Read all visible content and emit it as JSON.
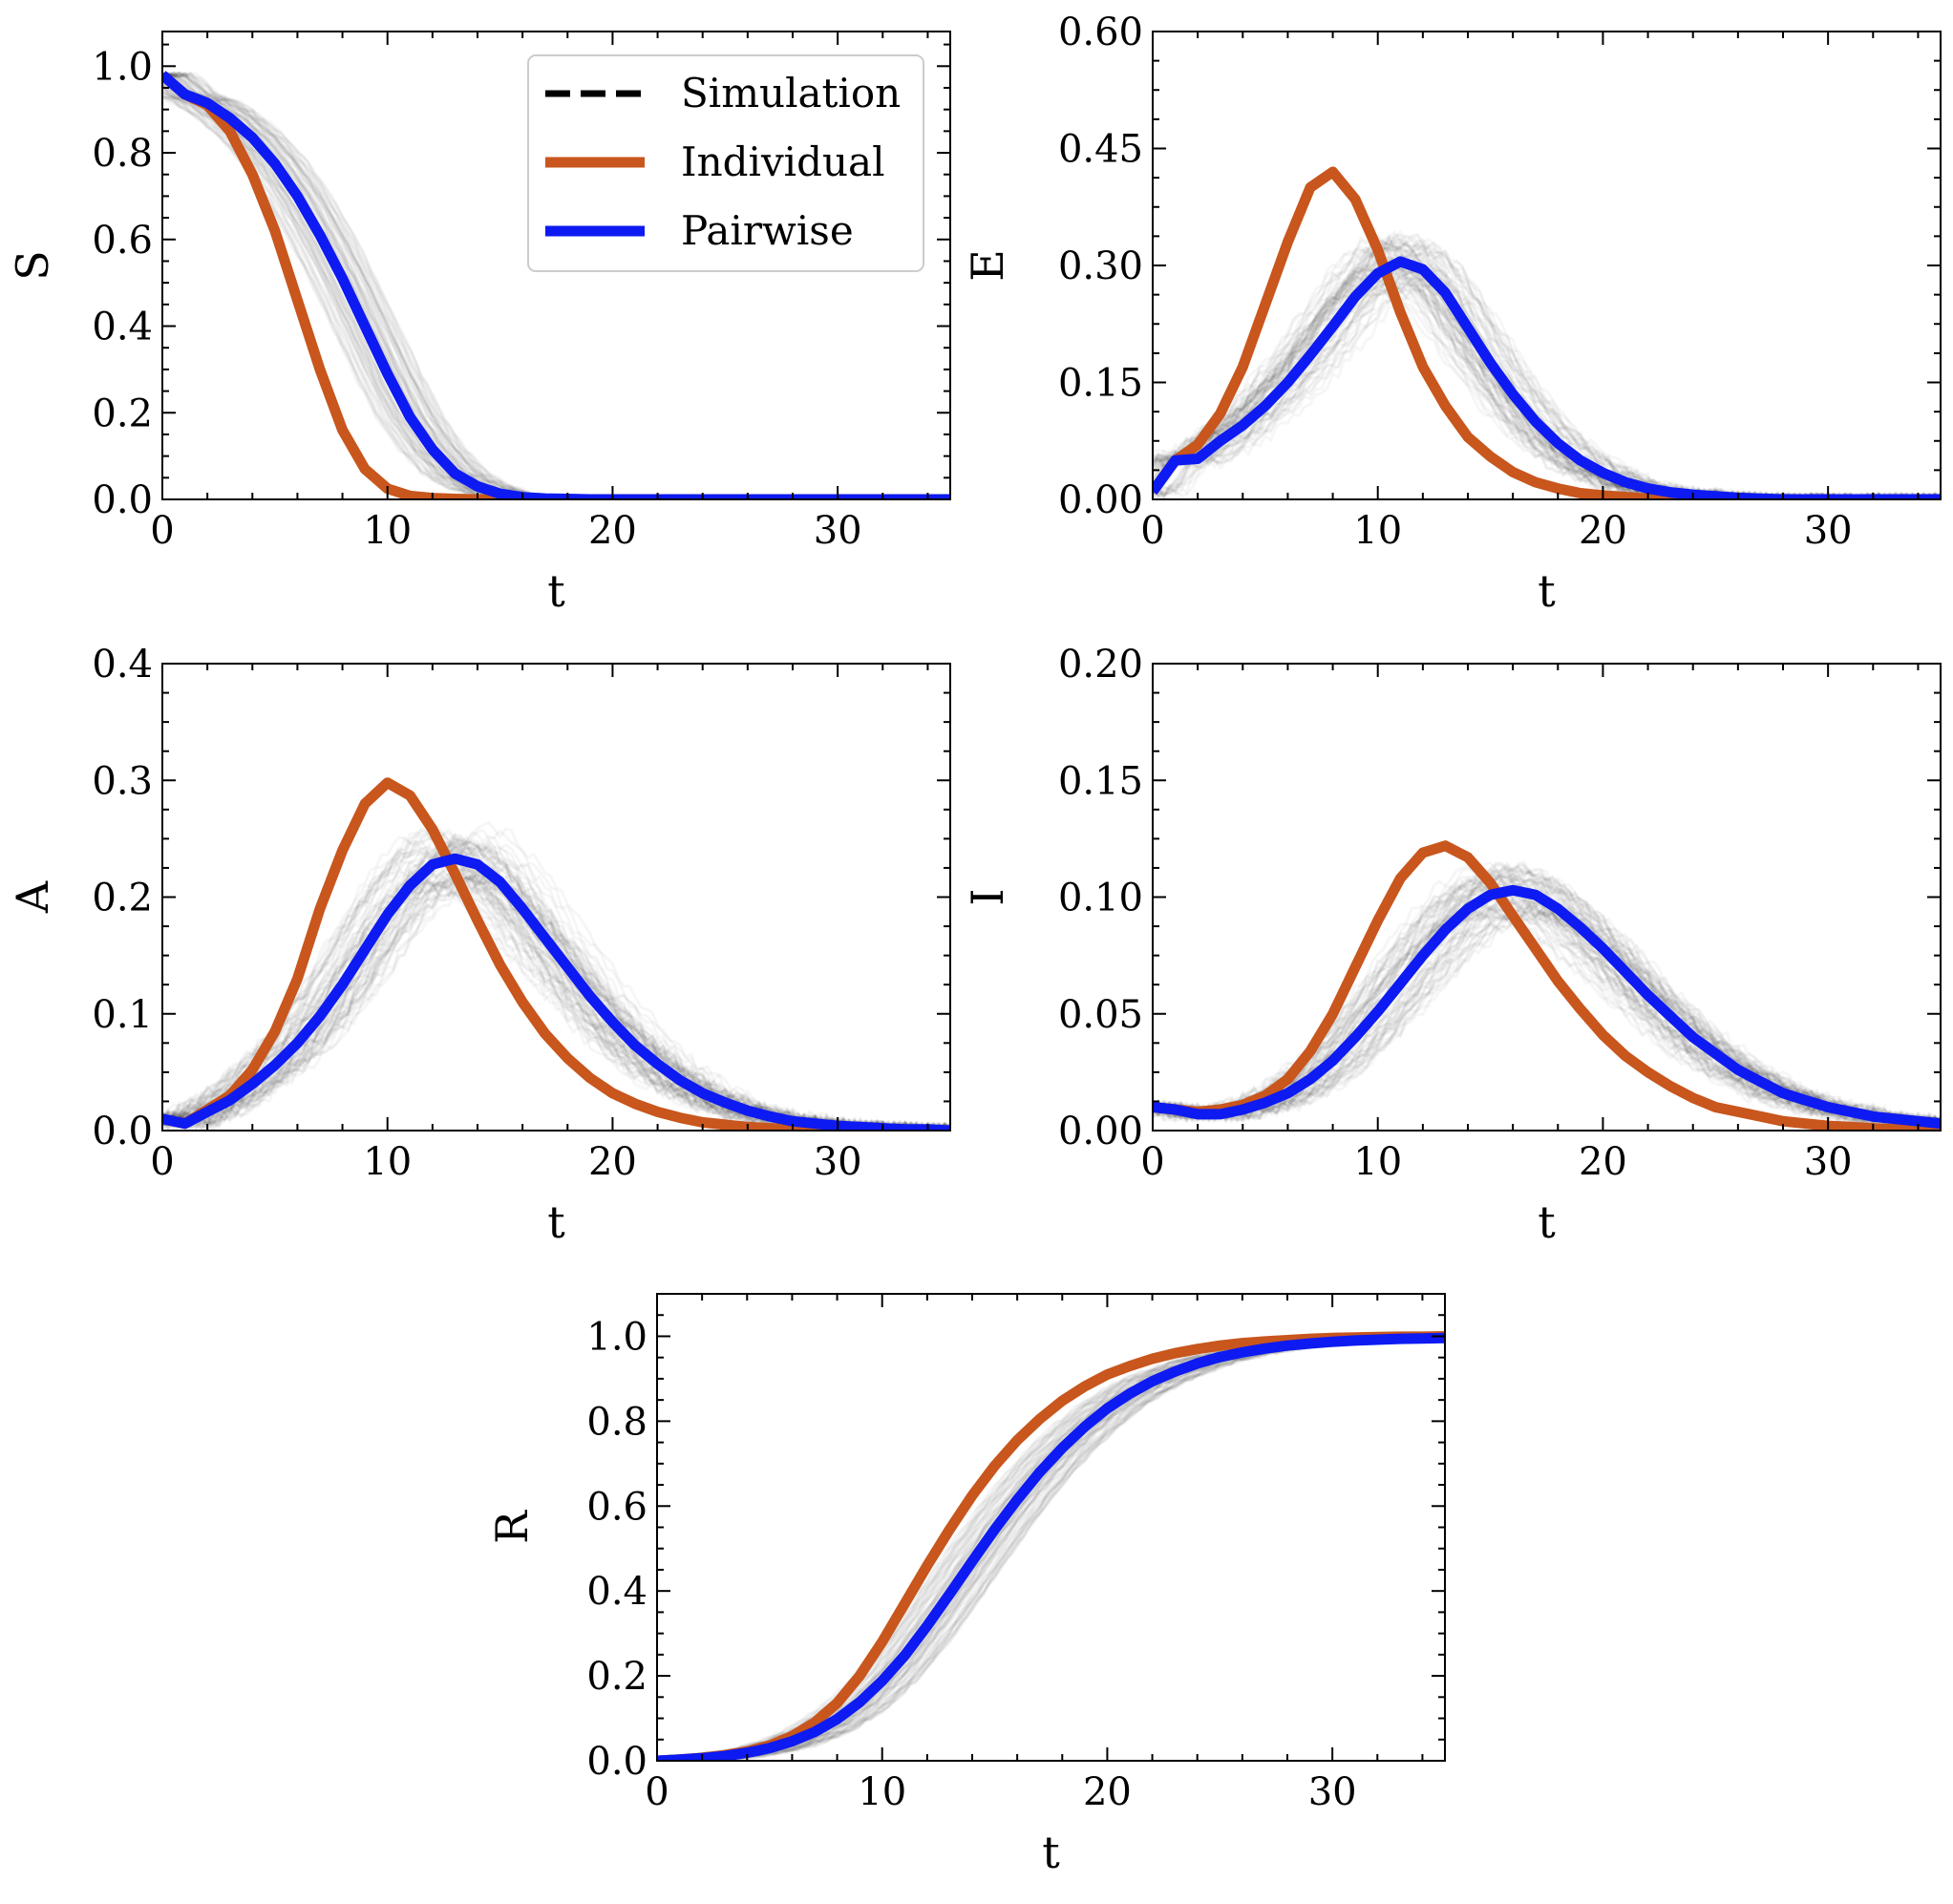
{
  "legend": {
    "entries": [
      {
        "label": "Simulation",
        "color": "#000000",
        "style": "dashed"
      },
      {
        "label": "Individual",
        "color": "#C8561D",
        "style": "solid"
      },
      {
        "label": "Pairwise",
        "color": "#0D1AF2",
        "style": "solid"
      }
    ],
    "placement": "top-right of S panel"
  },
  "chart_data": [
    {
      "id": "S",
      "type": "line",
      "title": "",
      "xlabel": "t",
      "ylabel": "S",
      "xlim": [
        0,
        35
      ],
      "ylim": [
        0,
        1.08
      ],
      "xticks": [
        0,
        10,
        20,
        30
      ],
      "xtick_labels": [
        "0",
        "10",
        "20",
        "30"
      ],
      "yticks": [
        0,
        0.2,
        0.4,
        0.6,
        0.8,
        1.0
      ],
      "ytick_labels": [
        "0.0",
        "0.2",
        "0.4",
        "0.6",
        "0.8",
        "1.0"
      ],
      "legend": true,
      "x": [
        0,
        1,
        2,
        3,
        4,
        5,
        6,
        7,
        8,
        9,
        10,
        11,
        12,
        13,
        14,
        15,
        16,
        17,
        18,
        19,
        20,
        21,
        22,
        23,
        24,
        25,
        26,
        27,
        28,
        29,
        30,
        31,
        32,
        33,
        34,
        35
      ],
      "series": [
        {
          "name": "Individual",
          "values": [
            0.98,
            0.935,
            0.91,
            0.85,
            0.75,
            0.62,
            0.46,
            0.3,
            0.16,
            0.07,
            0.025,
            0.008,
            0.003,
            0.001,
            0,
            0,
            0,
            0,
            0,
            0,
            0,
            0,
            0,
            0,
            0,
            0,
            0,
            0,
            0,
            0,
            0,
            0,
            0,
            0,
            0,
            0
          ]
        },
        {
          "name": "Pairwise",
          "values": [
            0.98,
            0.935,
            0.915,
            0.88,
            0.835,
            0.775,
            0.7,
            0.61,
            0.51,
            0.4,
            0.29,
            0.19,
            0.115,
            0.06,
            0.03,
            0.013,
            0.005,
            0.002,
            0.001,
            0,
            0,
            0,
            0,
            0,
            0,
            0,
            0,
            0,
            0,
            0,
            0,
            0,
            0,
            0,
            0,
            0
          ]
        }
      ]
    },
    {
      "id": "E",
      "type": "line",
      "title": "",
      "xlabel": "t",
      "ylabel": "E",
      "xlim": [
        0,
        35
      ],
      "ylim": [
        0,
        0.6
      ],
      "xticks": [
        0,
        10,
        20,
        30
      ],
      "xtick_labels": [
        "0",
        "10",
        "20",
        "30"
      ],
      "yticks": [
        0,
        0.15,
        0.3,
        0.45,
        0.6
      ],
      "ytick_labels": [
        "0.00",
        "0.15",
        "0.30",
        "0.45",
        "0.60"
      ],
      "legend": false,
      "x": [
        0,
        1,
        2,
        3,
        4,
        5,
        6,
        7,
        8,
        9,
        10,
        11,
        12,
        13,
        14,
        15,
        16,
        17,
        18,
        19,
        20,
        21,
        22,
        23,
        24,
        25,
        26,
        27,
        28,
        29,
        30,
        31,
        32,
        33,
        34,
        35
      ],
      "series": [
        {
          "name": "Individual",
          "values": [
            0.01,
            0.05,
            0.07,
            0.11,
            0.17,
            0.25,
            0.33,
            0.4,
            0.42,
            0.385,
            0.32,
            0.24,
            0.17,
            0.12,
            0.08,
            0.055,
            0.035,
            0.022,
            0.014,
            0.008,
            0.005,
            0.003,
            0.001,
            0,
            0,
            0,
            0,
            0,
            0,
            0,
            0,
            0,
            0,
            0,
            0,
            0
          ]
        },
        {
          "name": "Pairwise",
          "values": [
            0.01,
            0.05,
            0.052,
            0.075,
            0.095,
            0.12,
            0.15,
            0.185,
            0.222,
            0.26,
            0.29,
            0.305,
            0.295,
            0.265,
            0.22,
            0.175,
            0.135,
            0.1,
            0.072,
            0.05,
            0.034,
            0.022,
            0.014,
            0.009,
            0.006,
            0.004,
            0.002,
            0.001,
            0,
            0,
            0,
            0,
            0,
            0,
            0,
            0
          ]
        }
      ]
    },
    {
      "id": "A",
      "type": "line",
      "title": "",
      "xlabel": "t",
      "ylabel": "A",
      "xlim": [
        0,
        35
      ],
      "ylim": [
        0,
        0.4
      ],
      "xticks": [
        0,
        10,
        20,
        30
      ],
      "xtick_labels": [
        "0",
        "10",
        "20",
        "30"
      ],
      "yticks": [
        0,
        0.1,
        0.2,
        0.3,
        0.4
      ],
      "ytick_labels": [
        "0.0",
        "0.1",
        "0.2",
        "0.3",
        "0.4"
      ],
      "legend": false,
      "x": [
        0,
        1,
        2,
        3,
        4,
        5,
        6,
        7,
        8,
        9,
        10,
        11,
        12,
        13,
        14,
        15,
        16,
        17,
        18,
        19,
        20,
        21,
        22,
        23,
        24,
        25,
        26,
        27,
        28,
        29,
        30,
        31,
        32,
        33,
        34,
        35
      ],
      "series": [
        {
          "name": "Individual",
          "values": [
            0.01,
            0.006,
            0.018,
            0.03,
            0.052,
            0.085,
            0.13,
            0.19,
            0.24,
            0.28,
            0.298,
            0.287,
            0.258,
            0.22,
            0.18,
            0.142,
            0.11,
            0.083,
            0.062,
            0.045,
            0.032,
            0.023,
            0.016,
            0.011,
            0.007,
            0.005,
            0.003,
            0.002,
            0.001,
            0,
            0,
            0,
            0,
            0,
            0,
            0
          ]
        },
        {
          "name": "Pairwise",
          "values": [
            0.01,
            0.006,
            0.016,
            0.026,
            0.04,
            0.056,
            0.075,
            0.098,
            0.125,
            0.155,
            0.185,
            0.21,
            0.228,
            0.233,
            0.228,
            0.213,
            0.19,
            0.165,
            0.14,
            0.115,
            0.093,
            0.073,
            0.057,
            0.043,
            0.032,
            0.024,
            0.017,
            0.012,
            0.008,
            0.006,
            0.004,
            0.003,
            0.002,
            0.001,
            0.001,
            0
          ]
        }
      ]
    },
    {
      "id": "I",
      "type": "line",
      "title": "",
      "xlabel": "t",
      "ylabel": "I",
      "xlim": [
        0,
        35
      ],
      "ylim": [
        0,
        0.2
      ],
      "xticks": [
        0,
        10,
        20,
        30
      ],
      "xtick_labels": [
        "0",
        "10",
        "20",
        "30"
      ],
      "yticks": [
        0,
        0.05,
        0.1,
        0.15,
        0.2
      ],
      "ytick_labels": [
        "0.00",
        "0.05",
        "0.10",
        "0.15",
        "0.20"
      ],
      "legend": false,
      "x": [
        0,
        1,
        2,
        3,
        4,
        5,
        6,
        7,
        8,
        9,
        10,
        11,
        12,
        13,
        14,
        15,
        16,
        17,
        18,
        19,
        20,
        21,
        22,
        23,
        24,
        25,
        26,
        27,
        28,
        29,
        30,
        31,
        32,
        33,
        34,
        35
      ],
      "series": [
        {
          "name": "Individual",
          "values": [
            0.01,
            0.009,
            0.008,
            0.009,
            0.011,
            0.015,
            0.022,
            0.034,
            0.05,
            0.07,
            0.09,
            0.108,
            0.119,
            0.122,
            0.117,
            0.106,
            0.092,
            0.078,
            0.064,
            0.052,
            0.041,
            0.032,
            0.025,
            0.019,
            0.014,
            0.01,
            0.008,
            0.006,
            0.004,
            0.003,
            0.002,
            0.0015,
            0.001,
            0.0005,
            0,
            0
          ]
        },
        {
          "name": "Pairwise",
          "values": [
            0.01,
            0.009,
            0.007,
            0.007,
            0.009,
            0.012,
            0.016,
            0.022,
            0.03,
            0.04,
            0.051,
            0.063,
            0.075,
            0.086,
            0.095,
            0.101,
            0.103,
            0.101,
            0.095,
            0.087,
            0.078,
            0.068,
            0.058,
            0.049,
            0.04,
            0.033,
            0.026,
            0.021,
            0.016,
            0.013,
            0.01,
            0.008,
            0.006,
            0.005,
            0.004,
            0.003
          ]
        }
      ]
    },
    {
      "id": "R",
      "type": "line",
      "title": "",
      "xlabel": "t",
      "ylabel": "R",
      "xlim": [
        0,
        35
      ],
      "ylim": [
        0,
        1.1
      ],
      "xticks": [
        0,
        10,
        20,
        30
      ],
      "xtick_labels": [
        "0",
        "10",
        "20",
        "30"
      ],
      "yticks": [
        0,
        0.2,
        0.4,
        0.6,
        0.8,
        1.0
      ],
      "ytick_labels": [
        "0.0",
        "0.2",
        "0.4",
        "0.6",
        "0.8",
        "1.0"
      ],
      "legend": false,
      "x": [
        0,
        1,
        2,
        3,
        4,
        5,
        6,
        7,
        8,
        9,
        10,
        11,
        12,
        13,
        14,
        15,
        16,
        17,
        18,
        19,
        20,
        21,
        22,
        23,
        24,
        25,
        26,
        27,
        28,
        29,
        30,
        31,
        32,
        33,
        34,
        35
      ],
      "series": [
        {
          "name": "Individual",
          "values": [
            0,
            0.003,
            0.007,
            0.013,
            0.022,
            0.036,
            0.058,
            0.09,
            0.136,
            0.2,
            0.28,
            0.37,
            0.46,
            0.545,
            0.625,
            0.695,
            0.755,
            0.805,
            0.848,
            0.882,
            0.91,
            0.93,
            0.947,
            0.96,
            0.97,
            0.978,
            0.984,
            0.988,
            0.991,
            0.994,
            0.996,
            0.997,
            0.998,
            0.999,
            0.999,
            1.0
          ]
        },
        {
          "name": "Pairwise",
          "values": [
            0,
            0.003,
            0.006,
            0.011,
            0.019,
            0.03,
            0.046,
            0.068,
            0.098,
            0.138,
            0.188,
            0.248,
            0.318,
            0.393,
            0.47,
            0.545,
            0.615,
            0.68,
            0.737,
            0.787,
            0.83,
            0.865,
            0.894,
            0.917,
            0.936,
            0.951,
            0.962,
            0.971,
            0.978,
            0.983,
            0.987,
            0.99,
            0.992,
            0.994,
            0.995,
            0.996
          ]
        }
      ]
    }
  ]
}
